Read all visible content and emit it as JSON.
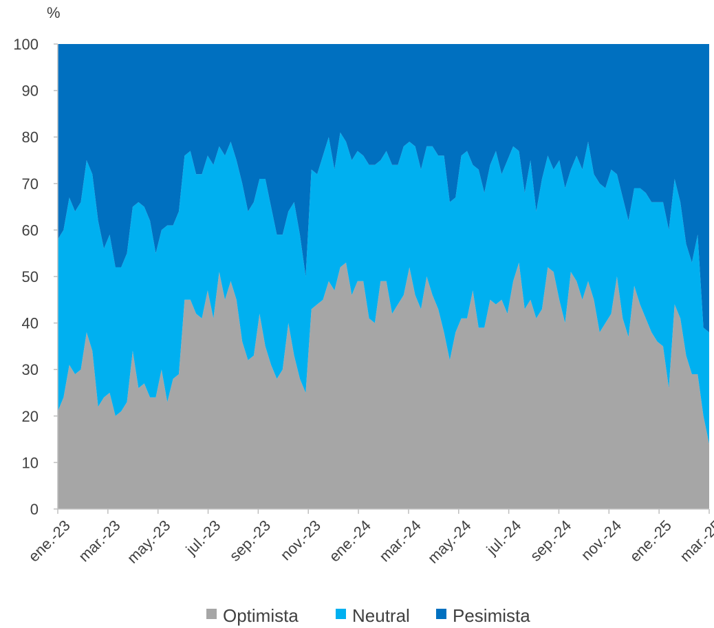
{
  "chart_data": {
    "type": "area",
    "stacked": true,
    "unit_label": "%",
    "ylim": [
      0,
      100
    ],
    "y_ticks": [
      0,
      10,
      20,
      30,
      40,
      50,
      60,
      70,
      80,
      90,
      100
    ],
    "x_tick_labels": [
      "ene.-23",
      "mar.-23",
      "may.-23",
      "jul.-23",
      "sep.-23",
      "nov.-23",
      "ene.-24",
      "mar.-24",
      "may.-24",
      "jul.-24",
      "sep.-24",
      "nov.-24",
      "ene.-25",
      "mar.-25"
    ],
    "grid": false,
    "legend_position": "bottom",
    "series": [
      {
        "name": "Optimista",
        "color": "#a6a6a6",
        "values": [
          21,
          24,
          31,
          29,
          30,
          38,
          34,
          22,
          24,
          25,
          20,
          21,
          23,
          34,
          26,
          27,
          24,
          24,
          30,
          23,
          28,
          29,
          45,
          45,
          42,
          41,
          47,
          41,
          51,
          45,
          49,
          45,
          36,
          32,
          33,
          42,
          35,
          31,
          28,
          30,
          40,
          33,
          28,
          25,
          43,
          44,
          45,
          49,
          47,
          52,
          53,
          46,
          49,
          49,
          41,
          40,
          49,
          49,
          42,
          44,
          46,
          52,
          46,
          43,
          50,
          46,
          43,
          38,
          32,
          38,
          41,
          41,
          47,
          39,
          39,
          45,
          44,
          45,
          42,
          49,
          53,
          43,
          45,
          41,
          43,
          52,
          51,
          45,
          40,
          51,
          49,
          45,
          49,
          45,
          38,
          40,
          42,
          50,
          41,
          37,
          48,
          44,
          41,
          38,
          36,
          35,
          26,
          44,
          41,
          33,
          29,
          29,
          20,
          14
        ]
      },
      {
        "name": "Neutral",
        "color": "#00b0f0",
        "values": [
          37,
          36,
          36,
          35,
          36,
          37,
          38,
          40,
          32,
          34,
          32,
          31,
          32,
          31,
          40,
          38,
          38,
          31,
          30,
          38,
          33,
          35,
          31,
          32,
          30,
          31,
          29,
          33,
          27,
          31,
          30,
          30,
          34,
          32,
          33,
          29,
          36,
          34,
          31,
          29,
          24,
          33,
          31,
          25,
          30,
          28,
          31,
          31,
          26,
          29,
          26,
          29,
          28,
          27,
          33,
          34,
          26,
          28,
          32,
          30,
          32,
          27,
          32,
          30,
          28,
          32,
          33,
          38,
          34,
          29,
          35,
          36,
          27,
          34,
          29,
          29,
          33,
          27,
          33,
          29,
          24,
          25,
          30,
          23,
          28,
          24,
          22,
          30,
          29,
          22,
          27,
          28,
          30,
          27,
          32,
          29,
          31,
          22,
          26,
          25,
          21,
          25,
          27,
          28,
          30,
          31,
          34,
          27,
          25,
          24,
          24,
          30,
          19,
          24
        ]
      },
      {
        "name": "Pesimista",
        "color": "#0070c0",
        "values": [
          42,
          40,
          33,
          36,
          34,
          25,
          28,
          38,
          44,
          41,
          48,
          48,
          45,
          35,
          34,
          35,
          38,
          45,
          40,
          39,
          39,
          36,
          24,
          23,
          28,
          28,
          24,
          26,
          22,
          24,
          21,
          25,
          30,
          36,
          34,
          29,
          29,
          35,
          41,
          41,
          36,
          34,
          41,
          50,
          27,
          28,
          24,
          20,
          27,
          19,
          21,
          25,
          23,
          24,
          26,
          26,
          25,
          23,
          26,
          26,
          22,
          21,
          22,
          27,
          22,
          22,
          24,
          24,
          34,
          33,
          24,
          23,
          26,
          27,
          32,
          26,
          23,
          28,
          25,
          22,
          23,
          32,
          25,
          36,
          29,
          24,
          27,
          25,
          31,
          27,
          24,
          27,
          21,
          28,
          30,
          31,
          27,
          28,
          33,
          38,
          31,
          31,
          32,
          34,
          34,
          34,
          40,
          29,
          34,
          43,
          47,
          41,
          61,
          62
        ]
      }
    ]
  }
}
